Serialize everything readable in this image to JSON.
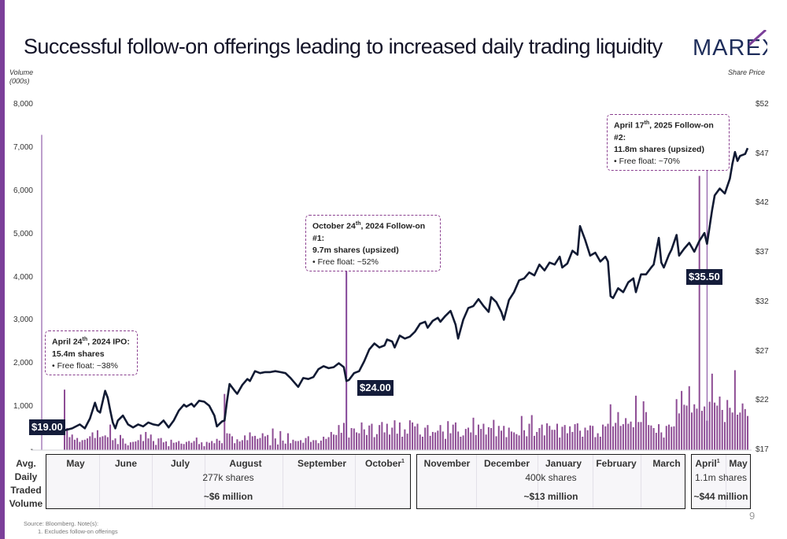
{
  "title": "Successful follow-on offerings leading to increased daily trading liquidity",
  "logo": {
    "text": "MAREX",
    "accent_color": "#7b3f99"
  },
  "colors": {
    "brand_purple": "#7b3f99",
    "line": "#111a33",
    "bar": "#8e4d95",
    "tag_bg": "#141c3a"
  },
  "chart_data": {
    "type": "bar+line",
    "left_axis": {
      "label_line1": "Volume",
      "label_line2": "(000s)",
      "ticks": [
        "8,000",
        "7,000",
        "6,000",
        "5,000",
        "4,000",
        "3,000",
        "2,000",
        "1,000",
        "-"
      ],
      "range": [
        0,
        8000
      ]
    },
    "right_axis": {
      "label": "Share Price",
      "ticks": [
        "$52",
        "$47",
        "$42",
        "$37",
        "$32",
        "$27",
        "$22",
        "$17"
      ],
      "range": [
        17,
        52
      ]
    },
    "price_series": {
      "name": "Share Price",
      "points": [
        [
          0,
          19.0
        ],
        [
          3,
          19.2
        ],
        [
          6,
          19.6
        ],
        [
          8,
          19.2
        ],
        [
          10,
          20.2
        ],
        [
          12,
          21.8
        ],
        [
          13,
          21.0
        ],
        [
          14,
          20.8
        ],
        [
          16,
          23.0
        ],
        [
          17,
          22.3
        ],
        [
          18,
          21.0
        ],
        [
          19,
          19.8
        ],
        [
          20,
          19.2
        ],
        [
          21,
          20.0
        ],
        [
          23,
          20.5
        ],
        [
          25,
          19.6
        ],
        [
          27,
          19.3
        ],
        [
          29,
          19.6
        ],
        [
          31,
          19.4
        ],
        [
          33,
          19.8
        ],
        [
          35,
          19.6
        ],
        [
          37,
          19.5
        ],
        [
          39,
          20.0
        ],
        [
          41,
          19.3
        ],
        [
          43,
          20.0
        ],
        [
          45,
          21.0
        ],
        [
          47,
          21.6
        ],
        [
          48,
          21.4
        ],
        [
          50,
          21.7
        ],
        [
          51,
          21.4
        ],
        [
          53,
          22.0
        ],
        [
          55,
          21.9
        ],
        [
          57,
          21.5
        ],
        [
          59,
          20.5
        ],
        [
          60,
          19.4
        ],
        [
          62,
          19.9
        ],
        [
          63,
          20.0
        ],
        [
          64,
          22.0
        ],
        [
          65,
          23.7
        ],
        [
          67,
          23.0
        ],
        [
          68,
          22.7
        ],
        [
          70,
          23.6
        ],
        [
          72,
          24.2
        ],
        [
          73,
          24.0
        ],
        [
          75,
          25.0
        ],
        [
          77,
          24.8
        ],
        [
          79,
          24.9
        ],
        [
          81,
          24.9
        ],
        [
          83,
          25.0
        ],
        [
          85,
          24.9
        ],
        [
          87,
          24.8
        ],
        [
          89,
          24.3
        ],
        [
          90,
          24.0
        ],
        [
          92,
          23.4
        ],
        [
          94,
          24.3
        ],
        [
          96,
          24.2
        ],
        [
          98,
          24.4
        ],
        [
          100,
          25.2
        ],
        [
          102,
          25.5
        ],
        [
          104,
          25.3
        ],
        [
          106,
          25.4
        ],
        [
          108,
          25.8
        ],
        [
          110,
          25.4
        ],
        [
          111,
          24.0
        ],
        [
          112,
          24.1
        ],
        [
          114,
          24.8
        ],
        [
          116,
          25.0
        ],
        [
          118,
          26.0
        ],
        [
          120,
          27.2
        ],
        [
          122,
          27.8
        ],
        [
          124,
          27.4
        ],
        [
          126,
          27.6
        ],
        [
          127,
          28.2
        ],
        [
          129,
          28.0
        ],
        [
          130,
          27.4
        ],
        [
          132,
          28.6
        ],
        [
          134,
          28.3
        ],
        [
          136,
          28.5
        ],
        [
          138,
          29.0
        ],
        [
          140,
          29.8
        ],
        [
          142,
          30.0
        ],
        [
          143,
          29.4
        ],
        [
          145,
          30.1
        ],
        [
          147,
          30.4
        ],
        [
          148,
          30.0
        ],
        [
          150,
          30.6
        ],
        [
          152,
          31.1
        ],
        [
          154,
          29.7
        ],
        [
          155,
          28.3
        ],
        [
          157,
          30.2
        ],
        [
          159,
          31.4
        ],
        [
          161,
          31.6
        ],
        [
          163,
          32.3
        ],
        [
          165,
          31.6
        ],
        [
          167,
          31.0
        ],
        [
          168,
          32.5
        ],
        [
          170,
          32.0
        ],
        [
          172,
          31.0
        ],
        [
          173,
          30.2
        ],
        [
          175,
          32.2
        ],
        [
          177,
          33.0
        ],
        [
          179,
          34.2
        ],
        [
          181,
          34.4
        ],
        [
          183,
          35.0
        ],
        [
          185,
          34.7
        ],
        [
          187,
          35.8
        ],
        [
          189,
          35.2
        ],
        [
          191,
          36.0
        ],
        [
          193,
          35.8
        ],
        [
          195,
          36.6
        ],
        [
          196,
          35.5
        ],
        [
          198,
          35.9
        ],
        [
          200,
          37.2
        ],
        [
          202,
          36.8
        ],
        [
          203,
          39.7
        ],
        [
          205,
          38.3
        ],
        [
          207,
          36.7
        ],
        [
          209,
          37.0
        ],
        [
          211,
          36.1
        ],
        [
          213,
          36.6
        ],
        [
          214,
          36.1
        ],
        [
          215,
          32.6
        ],
        [
          216,
          32.4
        ],
        [
          218,
          33.4
        ],
        [
          220,
          33.0
        ],
        [
          222,
          34.0
        ],
        [
          224,
          34.4
        ],
        [
          225,
          33.0
        ],
        [
          227,
          34.8
        ],
        [
          229,
          34.8
        ],
        [
          231,
          35.5
        ],
        [
          232,
          35.8
        ],
        [
          234,
          38.5
        ],
        [
          235,
          36.0
        ],
        [
          236,
          35.5
        ],
        [
          238,
          36.8
        ],
        [
          239,
          37.3
        ],
        [
          241,
          38.8
        ],
        [
          242,
          36.7
        ],
        [
          244,
          37.4
        ],
        [
          246,
          38.0
        ],
        [
          248,
          37.1
        ],
        [
          250,
          38.2
        ],
        [
          252,
          39.0
        ],
        [
          253,
          37.9
        ],
        [
          254,
          39.6
        ],
        [
          255,
          41.3
        ],
        [
          256,
          42.8
        ],
        [
          258,
          43.5
        ],
        [
          260,
          43.0
        ],
        [
          262,
          44.5
        ],
        [
          263,
          46.0
        ],
        [
          264,
          47.2
        ],
        [
          265,
          46.3
        ],
        [
          266,
          46.8
        ],
        [
          268,
          47.0
        ],
        [
          269,
          47.6
        ]
      ]
    },
    "volume_series": {
      "name": "Volume",
      "values": [
        1400,
        510,
        300,
        360,
        240,
        280,
        190,
        230,
        240,
        270,
        320,
        410,
        280,
        460,
        300,
        320,
        340,
        300,
        590,
        230,
        270,
        140,
        350,
        270,
        150,
        110,
        180,
        190,
        200,
        230,
        360,
        210,
        420,
        270,
        360,
        210,
        120,
        270,
        280,
        180,
        200,
        90,
        240,
        170,
        180,
        210,
        150,
        140,
        190,
        210,
        170,
        210,
        290,
        140,
        180,
        90,
        190,
        170,
        210,
        160,
        260,
        220,
        160,
        1300,
        390,
        380,
        320,
        160,
        250,
        200,
        230,
        340,
        230,
        410,
        320,
        330,
        260,
        280,
        390,
        320,
        350,
        110,
        500,
        270,
        130,
        440,
        220,
        150,
        390,
        160,
        240,
        210,
        210,
        230,
        170,
        280,
        320,
        190,
        230,
        230,
        160,
        220,
        310,
        260,
        300,
        420,
        360,
        350,
        580,
        400,
        630,
        4200,
        290,
        510,
        500,
        410,
        390,
        640,
        480,
        350,
        570,
        610,
        300,
        370,
        580,
        650,
        410,
        610,
        360,
        520,
        690,
        380,
        640,
        310,
        480,
        380,
        690,
        640,
        550,
        610,
        360,
        310,
        520,
        580,
        330,
        420,
        410,
        450,
        580,
        430,
        260,
        670,
        390,
        590,
        640,
        430,
        310,
        340,
        490,
        520,
        410,
        750,
        350,
        590,
        490,
        610,
        360,
        530,
        510,
        700,
        320,
        560,
        450,
        560,
        300,
        520,
        430,
        410,
        370,
        340,
        790,
        460,
        320,
        610,
        810,
        330,
        420,
        510,
        590,
        340,
        620,
        560,
        470,
        470,
        610,
        290,
        540,
        580,
        390,
        550,
        420,
        600,
        620,
        450,
        310,
        520,
        460,
        570,
        560,
        300,
        390,
        310,
        590,
        550,
        610,
        1060,
        550,
        630,
        880,
        560,
        600,
        740,
        610,
        660,
        530,
        1260,
        650,
        650,
        1130,
        880,
        580,
        570,
        510,
        400,
        600,
        410,
        290,
        560,
        590,
        540,
        550,
        1180,
        850,
        1370,
        1050,
        1030,
        1480,
        870,
        1060,
        960,
        6350,
        910,
        1010,
        680,
        1120,
        1770,
        1100,
        1030,
        1240,
        930,
        650,
        1160,
        980,
        870,
        1850,
        820,
        870,
        1080,
        950,
        790
      ]
    },
    "x_axis_months": [
      "May",
      "June",
      "July",
      "August",
      "September",
      "October",
      "November",
      "December",
      "January",
      "February",
      "March",
      "April",
      "May"
    ],
    "annotations": [
      {
        "head": "April 24",
        "sup": "th",
        "head_tail": ", 2024 IPO:",
        "line2": "15.4m shares",
        "line3": "•   Free float: ~38%",
        "price_tag": "$19.00"
      },
      {
        "head": "October 24",
        "sup": "th",
        "head_tail": ", 2024 Follow-on #1:",
        "line2": "9.7m shares (upsized)",
        "line3": "•   Free float: ~52%",
        "price_tag": "$24.00"
      },
      {
        "head": "April 17",
        "sup": "th",
        "head_tail": ", 2025 Follow-on #2:",
        "line2": "11.8m shares (upsized)",
        "line3": "•   Free float: ~70%",
        "price_tag": "$35.50"
      }
    ]
  },
  "avg_volume": {
    "label_lines": [
      "Avg.",
      "Daily",
      "Traded",
      "Volume"
    ],
    "period1": {
      "months": [
        "May",
        "June",
        "July",
        "August",
        "September",
        "October"
      ],
      "shares": "277k shares",
      "value": "~$6 million"
    },
    "period2": {
      "months": [
        "November",
        "December",
        "January",
        "February",
        "March"
      ],
      "shares": "400k shares",
      "value": "~$13 million"
    },
    "period3": {
      "months": [
        "April",
        "May"
      ],
      "shares": "1.1m shares",
      "value": "~$44 million"
    }
  },
  "footnotes": {
    "source": "Source: Bloomberg. Note(s):",
    "note1": "1.      Excludes follow-on offerings",
    "sup1": "1"
  },
  "page_number": "9"
}
